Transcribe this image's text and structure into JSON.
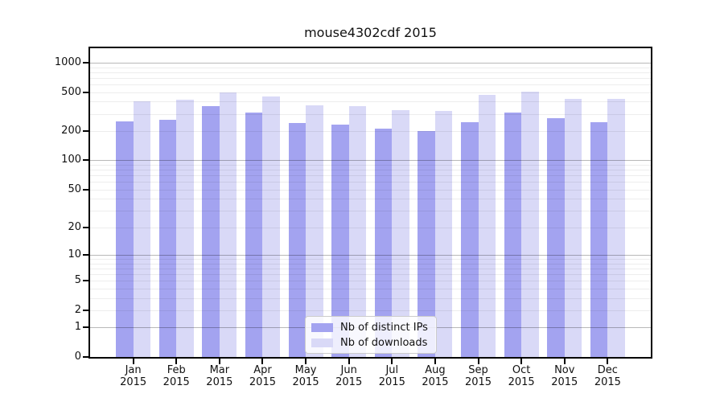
{
  "chart_data": {
    "type": "bar",
    "title": "mouse4302cdf 2015",
    "categories": [
      "Jan",
      "Feb",
      "Mar",
      "Apr",
      "May",
      "Jun",
      "Jul",
      "Aug",
      "Sep",
      "Oct",
      "Nov",
      "Dec"
    ],
    "category_year": "2015",
    "series": [
      {
        "name": "Nb of distinct IPs",
        "color": "#a3a3f0",
        "values": [
          249,
          260,
          362,
          310,
          243,
          234,
          210,
          200,
          246,
          310,
          273,
          245
        ]
      },
      {
        "name": "Nb of downloads",
        "color": "#d9d9f7",
        "values": [
          406,
          417,
          500,
          455,
          367,
          361,
          330,
          324,
          467,
          507,
          430,
          430
        ]
      }
    ],
    "yscale": "log1p",
    "ytick_values": [
      0,
      1,
      2,
      5,
      10,
      20,
      50,
      100,
      200,
      500,
      1000
    ],
    "ytick_labels": [
      "0",
      "1",
      "2",
      "5",
      "10",
      "20",
      "50",
      "100",
      "200",
      "500",
      "1000"
    ],
    "ylim": [
      0,
      1380
    ],
    "grid": true,
    "grid_major_at": [
      1,
      10,
      100,
      1000
    ],
    "legend_position": "inside-bottom-center",
    "xlabel": "",
    "ylabel": ""
  },
  "colors": {
    "background": "#ffffff",
    "axis": "#000000",
    "bar_distinct_ips": "#a3a3f0",
    "bar_downloads": "#d9d9f7",
    "grid_major": "#b8b8b8",
    "grid_minor": "#ececec",
    "legend_border": "#cccccc",
    "text": "#111111"
  }
}
